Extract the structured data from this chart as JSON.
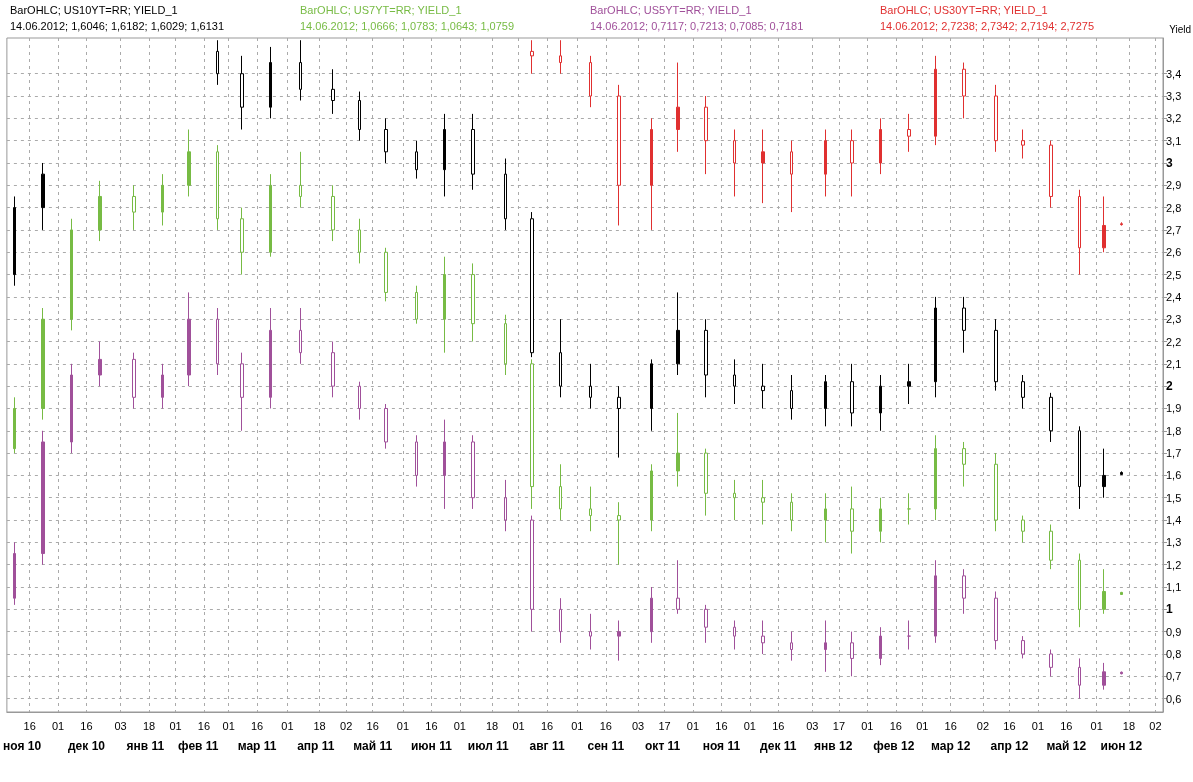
{
  "chart_data": {
    "type": "candlestick",
    "ylabel": "Yield",
    "x": [
      "2010-11-08",
      "2010-11-23",
      "2010-12-08",
      "2010-12-23",
      "2011-01-10",
      "2011-01-25",
      "2011-02-08",
      "2011-02-23",
      "2011-03-08",
      "2011-03-23",
      "2011-04-08",
      "2011-04-25",
      "2011-05-09",
      "2011-05-23",
      "2011-06-08",
      "2011-06-23",
      "2011-07-08",
      "2011-07-25",
      "2011-08-08",
      "2011-08-23",
      "2011-09-08",
      "2011-09-23",
      "2011-10-10",
      "2011-10-24",
      "2011-11-08",
      "2011-11-23",
      "2011-12-08",
      "2011-12-23",
      "2012-01-10",
      "2012-01-24",
      "2012-02-08",
      "2012-02-23",
      "2012-03-08",
      "2012-03-23",
      "2012-04-09",
      "2012-04-23",
      "2012-05-08",
      "2012-05-23",
      "2012-06-05",
      "2012-06-14"
    ],
    "series": [
      {
        "name": "BarOHLC; US10YT=RR; YIELD_1",
        "color": "#000000",
        "ohlc": [
          [
            2.5,
            2.85,
            2.45,
            2.8
          ],
          [
            2.8,
            3.0,
            2.7,
            2.95
          ],
          null,
          null,
          null,
          null,
          null,
          [
            3.5,
            3.55,
            3.35,
            3.4
          ],
          [
            3.4,
            3.48,
            3.15,
            3.25
          ],
          [
            3.25,
            3.52,
            3.2,
            3.45
          ],
          [
            3.45,
            3.55,
            3.28,
            3.33
          ],
          [
            3.33,
            3.42,
            3.22,
            3.28
          ],
          [
            3.28,
            3.32,
            3.1,
            3.15
          ],
          [
            3.15,
            3.2,
            3.0,
            3.05
          ],
          [
            3.05,
            3.1,
            2.93,
            2.97
          ],
          [
            2.97,
            3.22,
            2.85,
            3.15
          ],
          [
            3.15,
            3.22,
            2.88,
            2.95
          ],
          [
            2.95,
            3.02,
            2.7,
            2.75
          ],
          [
            2.75,
            2.78,
            2.13,
            2.15
          ],
          [
            2.15,
            2.3,
            1.95,
            2.0
          ],
          [
            2.0,
            2.1,
            1.9,
            1.95
          ],
          [
            1.95,
            2.0,
            1.68,
            1.9
          ],
          [
            1.9,
            2.12,
            1.8,
            2.1
          ],
          [
            2.1,
            2.42,
            2.05,
            2.25
          ],
          [
            2.25,
            2.3,
            1.95,
            2.05
          ],
          [
            2.05,
            2.12,
            1.92,
            2.0
          ],
          [
            2.0,
            2.1,
            1.9,
            1.98
          ],
          [
            1.98,
            2.05,
            1.85,
            1.9
          ],
          [
            1.9,
            2.05,
            1.82,
            2.02
          ],
          [
            2.02,
            2.1,
            1.82,
            1.88
          ],
          [
            1.88,
            2.05,
            1.8,
            2.0
          ],
          [
            2.0,
            2.1,
            1.92,
            2.02
          ],
          [
            2.02,
            2.4,
            1.95,
            2.35
          ],
          [
            2.35,
            2.4,
            2.15,
            2.25
          ],
          [
            2.25,
            2.3,
            1.98,
            2.02
          ],
          [
            2.02,
            2.05,
            1.9,
            1.95
          ],
          [
            1.95,
            1.97,
            1.75,
            1.8
          ],
          [
            1.8,
            1.82,
            1.45,
            1.55
          ],
          [
            1.55,
            1.72,
            1.5,
            1.6
          ],
          [
            1.6046,
            1.6182,
            1.6029,
            1.6131
          ]
        ]
      },
      {
        "name": "BarOHLC; US7YT=RR; YIELD_1",
        "color": "#77bb44",
        "ohlc": [
          [
            1.72,
            1.95,
            1.7,
            1.9
          ],
          [
            1.9,
            2.35,
            1.85,
            2.3
          ],
          [
            2.3,
            2.75,
            2.25,
            2.7
          ],
          [
            2.7,
            2.92,
            2.65,
            2.85
          ],
          [
            2.85,
            2.9,
            2.7,
            2.78
          ],
          [
            2.78,
            2.95,
            2.72,
            2.9
          ],
          [
            2.9,
            3.15,
            2.85,
            3.05
          ],
          [
            3.05,
            3.08,
            2.7,
            2.75
          ],
          [
            2.75,
            2.8,
            2.5,
            2.6
          ],
          [
            2.6,
            2.95,
            2.58,
            2.9
          ],
          [
            2.9,
            3.05,
            2.8,
            2.85
          ],
          [
            2.85,
            2.9,
            2.65,
            2.7
          ],
          [
            2.7,
            2.75,
            2.55,
            2.6
          ],
          [
            2.6,
            2.62,
            2.38,
            2.42
          ],
          [
            2.42,
            2.45,
            2.28,
            2.3
          ],
          [
            2.3,
            2.58,
            2.15,
            2.5
          ],
          [
            2.5,
            2.55,
            2.2,
            2.28
          ],
          [
            2.28,
            2.32,
            2.05,
            2.1
          ],
          [
            2.1,
            2.12,
            1.45,
            1.55
          ],
          [
            1.55,
            1.65,
            1.4,
            1.45
          ],
          [
            1.45,
            1.55,
            1.35,
            1.42
          ],
          [
            1.42,
            1.48,
            1.2,
            1.4
          ],
          [
            1.4,
            1.65,
            1.35,
            1.62
          ],
          [
            1.62,
            1.88,
            1.55,
            1.7
          ],
          [
            1.7,
            1.72,
            1.42,
            1.52
          ],
          [
            1.52,
            1.58,
            1.4,
            1.5
          ],
          [
            1.5,
            1.58,
            1.38,
            1.48
          ],
          [
            1.48,
            1.52,
            1.35,
            1.4
          ],
          [
            1.4,
            1.52,
            1.3,
            1.45
          ],
          [
            1.45,
            1.55,
            1.25,
            1.35
          ],
          [
            1.35,
            1.5,
            1.3,
            1.45
          ],
          [
            1.45,
            1.52,
            1.38,
            1.45
          ],
          [
            1.45,
            1.78,
            1.4,
            1.72
          ],
          [
            1.72,
            1.75,
            1.55,
            1.65
          ],
          [
            1.65,
            1.7,
            1.35,
            1.4
          ],
          [
            1.4,
            1.42,
            1.3,
            1.35
          ],
          [
            1.35,
            1.38,
            1.18,
            1.22
          ],
          [
            1.22,
            1.25,
            0.92,
            1.0
          ],
          [
            1.0,
            1.18,
            0.98,
            1.08
          ],
          [
            1.0666,
            1.0783,
            1.0643,
            1.0759
          ]
        ]
      },
      {
        "name": "BarOHLC; US5YT=RR; YIELD_1",
        "color": "#a0509a",
        "ohlc": [
          [
            1.05,
            1.3,
            1.02,
            1.25
          ],
          [
            1.25,
            1.8,
            1.2,
            1.75
          ],
          [
            1.75,
            2.1,
            1.7,
            2.05
          ],
          [
            2.05,
            2.2,
            2.0,
            2.12
          ],
          [
            2.12,
            2.15,
            1.9,
            1.95
          ],
          [
            1.95,
            2.1,
            1.9,
            2.05
          ],
          [
            2.05,
            2.42,
            2.0,
            2.3
          ],
          [
            2.3,
            2.35,
            2.05,
            2.1
          ],
          [
            2.1,
            2.15,
            1.8,
            1.95
          ],
          [
            1.95,
            2.35,
            1.9,
            2.25
          ],
          [
            2.25,
            2.35,
            2.1,
            2.15
          ],
          [
            2.15,
            2.2,
            1.95,
            2.0
          ],
          [
            2.0,
            2.02,
            1.85,
            1.9
          ],
          [
            1.9,
            1.92,
            1.72,
            1.75
          ],
          [
            1.75,
            1.78,
            1.55,
            1.6
          ],
          [
            1.6,
            1.85,
            1.45,
            1.75
          ],
          [
            1.75,
            1.78,
            1.45,
            1.5
          ],
          [
            1.5,
            1.58,
            1.35,
            1.4
          ],
          [
            1.4,
            1.42,
            0.9,
            1.0
          ],
          [
            1.0,
            1.05,
            0.85,
            0.9
          ],
          [
            0.9,
            0.98,
            0.82,
            0.88
          ],
          [
            0.88,
            0.95,
            0.77,
            0.9
          ],
          [
            0.9,
            1.1,
            0.85,
            1.05
          ],
          [
            1.05,
            1.22,
            0.98,
            1.0
          ],
          [
            1.0,
            1.02,
            0.85,
            0.92
          ],
          [
            0.92,
            0.95,
            0.82,
            0.88
          ],
          [
            0.88,
            0.95,
            0.8,
            0.85
          ],
          [
            0.85,
            0.9,
            0.77,
            0.82
          ],
          [
            0.82,
            0.95,
            0.72,
            0.85
          ],
          [
            0.85,
            0.9,
            0.7,
            0.78
          ],
          [
            0.78,
            0.92,
            0.75,
            0.88
          ],
          [
            0.88,
            0.95,
            0.82,
            0.88
          ],
          [
            0.88,
            1.22,
            0.85,
            1.15
          ],
          [
            1.15,
            1.18,
            0.98,
            1.05
          ],
          [
            1.05,
            1.08,
            0.82,
            0.86
          ],
          [
            0.86,
            0.88,
            0.78,
            0.8
          ],
          [
            0.8,
            0.82,
            0.7,
            0.74
          ],
          [
            0.74,
            0.78,
            0.6,
            0.66
          ],
          [
            0.66,
            0.76,
            0.64,
            0.72
          ],
          [
            0.7117,
            0.7213,
            0.7085,
            0.7181
          ]
        ]
      },
      {
        "name": "BarOHLC; US30YT=RR; YIELD_1",
        "color": "#e03030",
        "ohlc": [
          null,
          null,
          null,
          null,
          null,
          null,
          null,
          null,
          null,
          null,
          null,
          null,
          null,
          null,
          null,
          null,
          null,
          null,
          [
            3.5,
            3.55,
            3.4,
            3.48
          ],
          [
            3.48,
            3.55,
            3.4,
            3.45
          ],
          [
            3.45,
            3.48,
            3.25,
            3.3
          ],
          [
            3.3,
            3.35,
            2.72,
            2.9
          ],
          [
            2.9,
            3.2,
            2.7,
            3.15
          ],
          [
            3.15,
            3.45,
            3.05,
            3.25
          ],
          [
            3.25,
            3.3,
            2.95,
            3.1
          ],
          [
            3.1,
            3.15,
            2.85,
            3.0
          ],
          [
            3.0,
            3.15,
            2.82,
            3.05
          ],
          [
            3.05,
            3.1,
            2.78,
            2.95
          ],
          [
            2.95,
            3.15,
            2.85,
            3.1
          ],
          [
            3.1,
            3.15,
            2.85,
            3.0
          ],
          [
            3.0,
            3.2,
            2.95,
            3.15
          ],
          [
            3.15,
            3.22,
            3.05,
            3.12
          ],
          [
            3.12,
            3.48,
            3.08,
            3.42
          ],
          [
            3.42,
            3.45,
            3.2,
            3.3
          ],
          [
            3.3,
            3.35,
            3.05,
            3.1
          ],
          [
            3.1,
            3.15,
            3.02,
            3.08
          ],
          [
            3.08,
            3.1,
            2.8,
            2.85
          ],
          [
            2.85,
            2.88,
            2.5,
            2.62
          ],
          [
            2.62,
            2.85,
            2.6,
            2.72
          ],
          [
            2.7238,
            2.7342,
            2.7194,
            2.7275
          ]
        ]
      }
    ],
    "annotations": [
      "14.06.2012; 1,6046; 1,6182; 1,6029; 1,6131",
      "14.06.2012; 1,0666; 1,0783; 1,0643; 1,0759",
      "14.06.2012; 0,7117; 0,7213; 0,7085; 0,7181",
      "14.06.2012; 2,7238; 2,7342; 2,7194; 2,7275"
    ],
    "xlim": [
      "2010-11-04",
      "2012-07-06"
    ],
    "xticks": [
      {
        "value": "2010-11-16",
        "label": "16"
      },
      {
        "value": "2010-12-01",
        "label": "01"
      },
      {
        "value": "2010-12-16",
        "label": "16"
      },
      {
        "value": "2011-01-03",
        "label": "03"
      },
      {
        "value": "2011-01-18",
        "label": "18"
      },
      {
        "value": "2011-02-01",
        "label": "01"
      },
      {
        "value": "2011-02-16",
        "label": "16"
      },
      {
        "value": "2011-03-01",
        "label": "01"
      },
      {
        "value": "2011-03-16",
        "label": "16"
      },
      {
        "value": "2011-04-01",
        "label": "01"
      },
      {
        "value": "2011-04-18",
        "label": "18"
      },
      {
        "value": "2011-05-02",
        "label": "02"
      },
      {
        "value": "2011-05-16",
        "label": "16"
      },
      {
        "value": "2011-06-01",
        "label": "01"
      },
      {
        "value": "2011-06-16",
        "label": "16"
      },
      {
        "value": "2011-07-01",
        "label": "01"
      },
      {
        "value": "2011-07-18",
        "label": "18"
      },
      {
        "value": "2011-08-01",
        "label": "01"
      },
      {
        "value": "2011-08-16",
        "label": "16"
      },
      {
        "value": "2011-09-01",
        "label": "01"
      },
      {
        "value": "2011-09-16",
        "label": "16"
      },
      {
        "value": "2011-10-03",
        "label": "03"
      },
      {
        "value": "2011-10-17",
        "label": "17"
      },
      {
        "value": "2011-11-01",
        "label": "01"
      },
      {
        "value": "2011-11-16",
        "label": "16"
      },
      {
        "value": "2011-12-01",
        "label": "01"
      },
      {
        "value": "2011-12-16",
        "label": "16"
      },
      {
        "value": "2012-01-03",
        "label": "03"
      },
      {
        "value": "2012-01-17",
        "label": "17"
      },
      {
        "value": "2012-02-01",
        "label": "01"
      },
      {
        "value": "2012-02-16",
        "label": "16"
      },
      {
        "value": "2012-03-01",
        "label": "01"
      },
      {
        "value": "2012-03-16",
        "label": "16"
      },
      {
        "value": "2012-04-02",
        "label": "02"
      },
      {
        "value": "2012-04-16",
        "label": "16"
      },
      {
        "value": "2012-05-01",
        "label": "01"
      },
      {
        "value": "2012-05-16",
        "label": "16"
      },
      {
        "value": "2012-06-01",
        "label": "01"
      },
      {
        "value": "2012-06-18",
        "label": "18"
      },
      {
        "value": "2012-07-02",
        "label": "02"
      }
    ],
    "x2lim": [
      "2010-11-04",
      "2012-07-06"
    ],
    "x2ticks": [
      {
        "value": "2010-11-12",
        "label": "ноя 10"
      },
      {
        "value": "2010-12-16",
        "label": "дек 10"
      },
      {
        "value": "2011-01-16",
        "label": "янв 11"
      },
      {
        "value": "2011-02-13",
        "label": "фев 11"
      },
      {
        "value": "2011-03-16",
        "label": "мар 11"
      },
      {
        "value": "2011-04-16",
        "label": "апр 11"
      },
      {
        "value": "2011-05-16",
        "label": "май 11"
      },
      {
        "value": "2011-06-16",
        "label": "июн 11"
      },
      {
        "value": "2011-07-16",
        "label": "июл 11"
      },
      {
        "value": "2011-08-16",
        "label": "авг 11"
      },
      {
        "value": "2011-09-16",
        "label": "сен 11"
      },
      {
        "value": "2011-10-16",
        "label": "окт 11"
      },
      {
        "value": "2011-11-16",
        "label": "ноя 11"
      },
      {
        "value": "2011-12-16",
        "label": "дек 11"
      },
      {
        "value": "2012-01-14",
        "label": "янв 12"
      },
      {
        "value": "2012-02-15",
        "label": "фев 12"
      },
      {
        "value": "2012-03-16",
        "label": "мар 12"
      },
      {
        "value": "2012-04-16",
        "label": "апр 12"
      },
      {
        "value": "2012-05-16",
        "label": "май 12"
      },
      {
        "value": "2012-06-14",
        "label": "июн 12"
      }
    ],
    "ylim": [
      0.54,
      3.56
    ],
    "yticks": [
      {
        "value": 0.6,
        "label": "0,6"
      },
      {
        "value": 0.7,
        "label": "0,7"
      },
      {
        "value": 0.8,
        "label": "0,8"
      },
      {
        "value": 0.9,
        "label": "0,9"
      },
      1,
      {
        "value": 1.1,
        "label": "1,1"
      },
      {
        "value": 1.2,
        "label": "1,2"
      },
      {
        "value": 1.3,
        "label": "1,3"
      },
      {
        "value": 1.4,
        "label": "1,4"
      },
      {
        "value": 1.5,
        "label": "1,5"
      },
      {
        "value": 1.6,
        "label": "1,6"
      },
      {
        "value": 1.7,
        "label": "1,7"
      },
      {
        "value": 1.8,
        "label": "1,8"
      },
      {
        "value": 1.9,
        "label": "1,9"
      },
      2,
      {
        "value": 2.1,
        "label": "2,1"
      },
      {
        "value": 2.2,
        "label": "2,2"
      },
      {
        "value": 2.3,
        "label": "2,3"
      },
      {
        "value": 2.4,
        "label": "2,4"
      },
      {
        "value": 2.5,
        "label": "2,5"
      },
      {
        "value": 2.6,
        "label": "2,6"
      },
      {
        "value": 2.7,
        "label": "2,7"
      },
      {
        "value": 2.8,
        "label": "2,8"
      },
      {
        "value": 2.9,
        "label": "2,9"
      },
      3,
      {
        "value": 3.1,
        "label": "3,1"
      },
      {
        "value": 3.2,
        "label": "3,2"
      },
      {
        "value": 3.3,
        "label": "3,3"
      },
      {
        "value": 3.4,
        "label": "3,4"
      }
    ],
    "grid": true,
    "legend": "top left"
  }
}
